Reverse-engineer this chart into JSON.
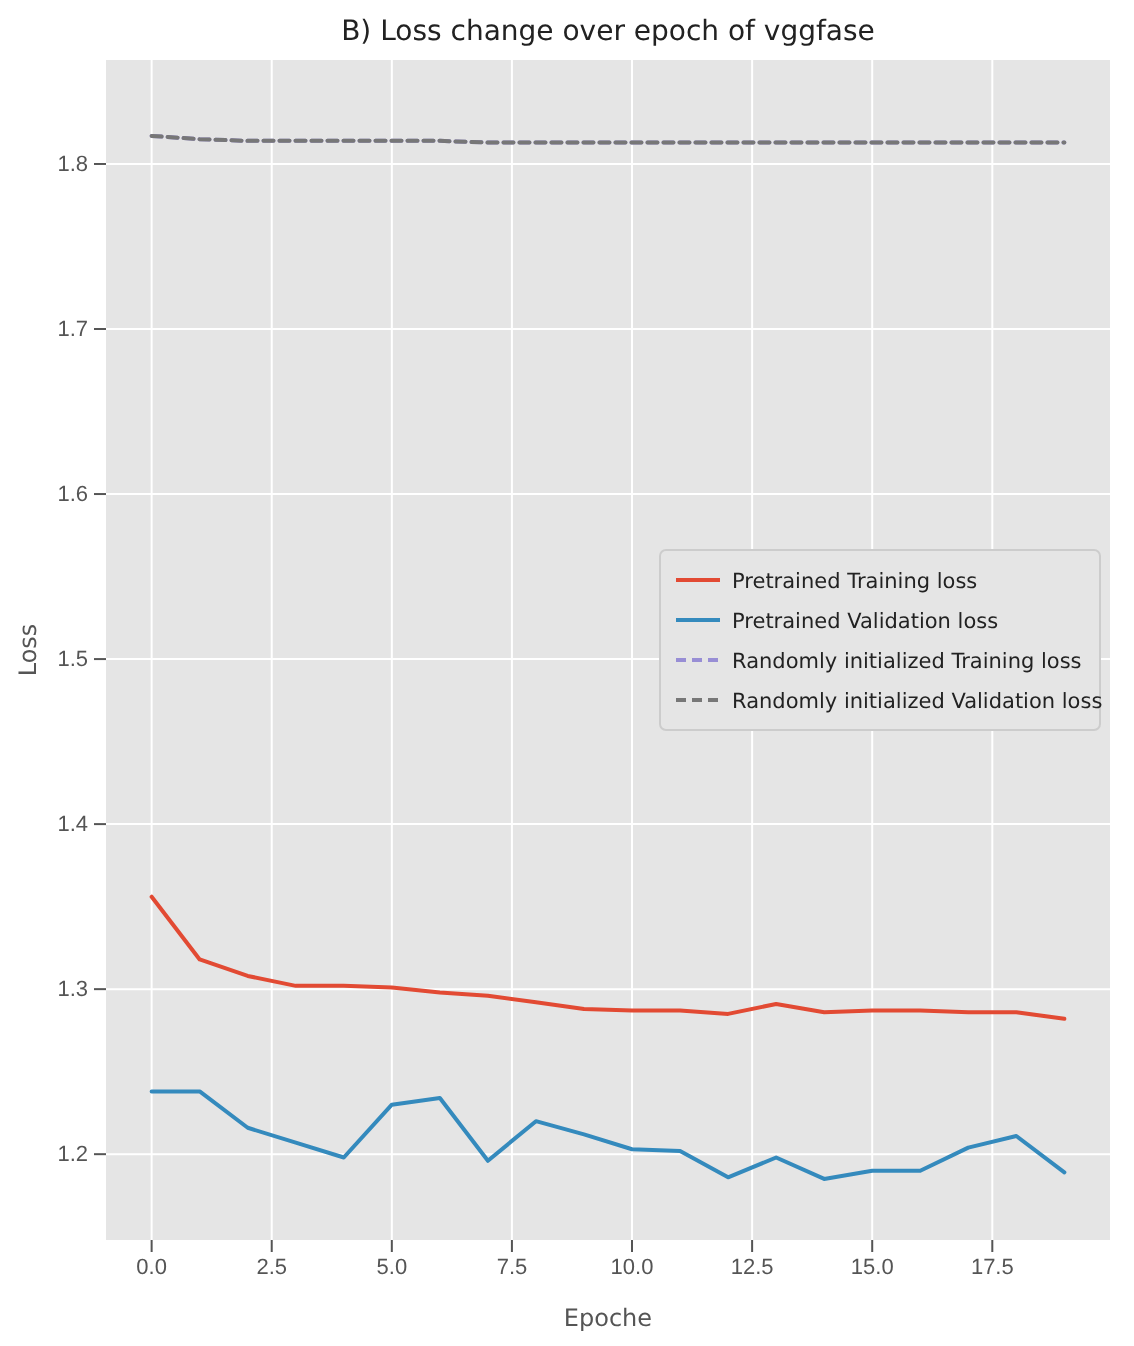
{
  "chart_data": {
    "type": "line",
    "title": "B) Loss change over epoch of vggfase",
    "xlabel": "Epoche",
    "ylabel": "Loss",
    "x": [
      0,
      1,
      2,
      3,
      4,
      5,
      6,
      7,
      8,
      9,
      10,
      11,
      12,
      13,
      14,
      15,
      16,
      17,
      18,
      19
    ],
    "series": [
      {
        "name": "Pretrained Training loss",
        "color": "#e24a33",
        "line_style": "solid",
        "values": [
          1.356,
          1.318,
          1.308,
          1.302,
          1.302,
          1.301,
          1.298,
          1.296,
          1.292,
          1.288,
          1.287,
          1.287,
          1.285,
          1.291,
          1.286,
          1.287,
          1.287,
          1.286,
          1.286,
          1.282
        ]
      },
      {
        "name": "Pretrained Validation loss",
        "color": "#348abd",
        "line_style": "solid",
        "values": [
          1.238,
          1.238,
          1.216,
          1.207,
          1.198,
          1.23,
          1.234,
          1.196,
          1.22,
          1.212,
          1.203,
          1.202,
          1.186,
          1.198,
          1.185,
          1.19,
          1.19,
          1.204,
          1.211,
          1.189
        ]
      },
      {
        "name": "Randomly initialized Training loss",
        "color": "#988ed5",
        "line_style": "dashed",
        "values": [
          1.817,
          1.815,
          1.814,
          1.814,
          1.814,
          1.814,
          1.814,
          1.813,
          1.813,
          1.813,
          1.813,
          1.813,
          1.813,
          1.813,
          1.813,
          1.813,
          1.813,
          1.813,
          1.813,
          1.813
        ]
      },
      {
        "name": "Randomly initialized Validation loss",
        "color": "#777777",
        "line_style": "dashed",
        "values": [
          1.817,
          1.815,
          1.814,
          1.814,
          1.814,
          1.814,
          1.814,
          1.813,
          1.813,
          1.813,
          1.813,
          1.813,
          1.813,
          1.813,
          1.813,
          1.813,
          1.813,
          1.813,
          1.813,
          1.813
        ]
      }
    ],
    "xlim": [
      -0.95,
      19.95
    ],
    "ylim": [
      1.148,
      1.863
    ],
    "xticks": [
      {
        "value": 0,
        "label": "0.0"
      },
      2.5,
      {
        "value": 5,
        "label": "5.0"
      },
      7.5,
      {
        "value": 10,
        "label": "10.0"
      },
      12.5,
      {
        "value": 15,
        "label": "15.0"
      },
      17.5
    ],
    "yticks": [
      1.2,
      1.3,
      1.4,
      1.5,
      1.6,
      1.7,
      1.8
    ],
    "grid": true,
    "legend": "right",
    "marker": "none"
  }
}
